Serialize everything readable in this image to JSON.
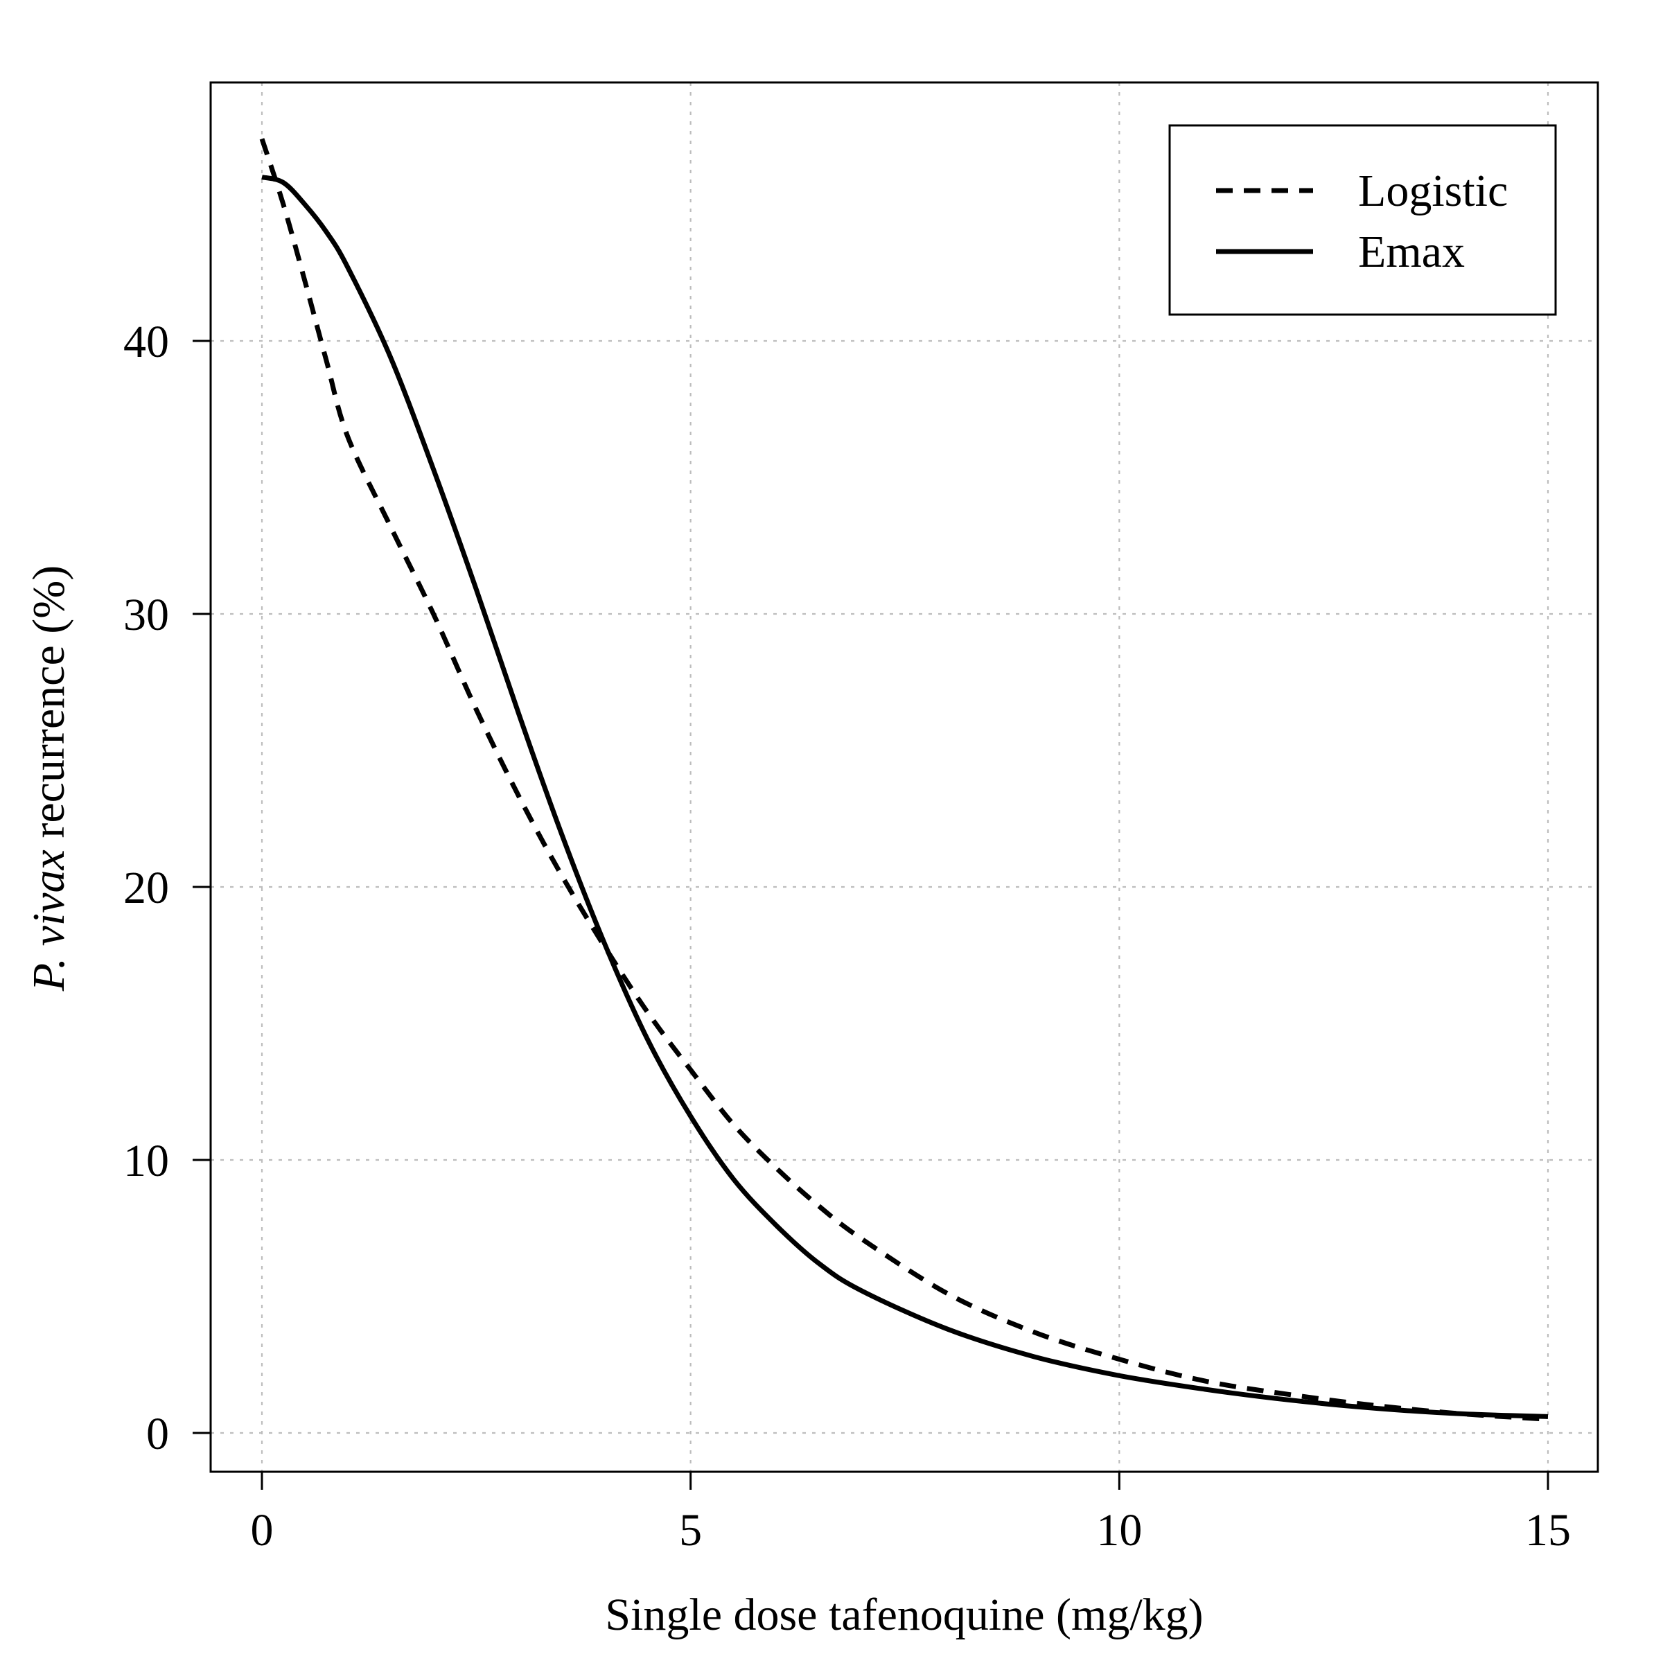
{
  "chart_data": {
    "type": "line",
    "xlabel": "Single dose tafenoquine (mg/kg)",
    "ylabel_italic": "P. vivax",
    "ylabel_rest": " recurrence (%)",
    "xlim": [
      0,
      15
    ],
    "ylim": [
      0,
      48
    ],
    "x_ticks": [
      0,
      5,
      10,
      15
    ],
    "y_ticks": [
      0,
      10,
      20,
      30,
      40
    ],
    "x_tick_labels": [
      "0",
      "5",
      "10",
      "15"
    ],
    "y_tick_labels": [
      "0",
      "10",
      "20",
      "30",
      "40"
    ],
    "grid": true,
    "legend_position": "top-right",
    "series": [
      {
        "name": "Logistic",
        "style": "dashed",
        "color": "#000000",
        "x": [
          0,
          0.25,
          0.5,
          0.75,
          1,
          1.5,
          2,
          2.5,
          3,
          3.5,
          4,
          4.5,
          5,
          5.5,
          6,
          6.5,
          7,
          8,
          9,
          10,
          11,
          12,
          13,
          14,
          15
        ],
        "y": [
          47.4,
          45.0,
          42.2,
          39.3,
          36.5,
          33.2,
          30.0,
          26.5,
          23.3,
          20.4,
          17.8,
          15.4,
          13.3,
          11.3,
          9.7,
          8.3,
          7.1,
          5.1,
          3.7,
          2.7,
          1.9,
          1.4,
          1.0,
          0.7,
          0.5
        ]
      },
      {
        "name": "Emax",
        "style": "solid",
        "color": "#000000",
        "x": [
          0,
          0.25,
          0.5,
          0.75,
          1,
          1.5,
          2,
          2.5,
          3,
          3.5,
          4,
          4.5,
          5,
          5.5,
          6,
          6.5,
          7,
          8,
          9,
          10,
          11,
          12,
          13,
          14,
          15
        ],
        "y": [
          46.0,
          45.8,
          45.0,
          44.0,
          42.7,
          39.4,
          35.3,
          30.9,
          26.3,
          21.9,
          17.9,
          14.4,
          11.6,
          9.3,
          7.6,
          6.2,
          5.2,
          3.8,
          2.8,
          2.1,
          1.6,
          1.2,
          0.9,
          0.7,
          0.6
        ]
      }
    ]
  }
}
